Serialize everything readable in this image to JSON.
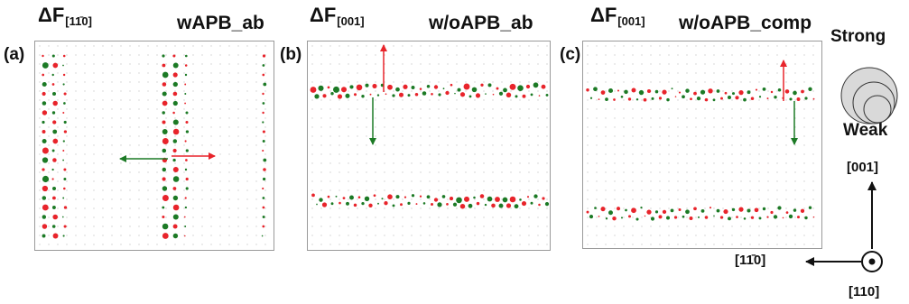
{
  "panels": [
    {
      "label": "(a)",
      "delta": "ΔF",
      "sub": "[11̄0]",
      "title": "wAPB_ab",
      "pattern": "vertical"
    },
    {
      "label": "(b)",
      "delta": "ΔF",
      "sub": "[001]",
      "title": "w/oAPB_ab",
      "pattern": "horizontal-wide"
    },
    {
      "label": "(c)",
      "delta": "ΔF",
      "sub": "[001]",
      "title": "w/oAPB_comp",
      "pattern": "horizontal-narrow"
    }
  ],
  "legend": {
    "strong": "Strong",
    "weak": "Weak"
  },
  "axes": {
    "up": "[001]",
    "left": "[11̄0]",
    "out": "[110]"
  },
  "colors": {
    "red": "#e8242b",
    "green": "#1c7a25",
    "grid": "#cfcfcf",
    "circle_fill": "#d9d9d9",
    "circle_stroke": "#333333"
  }
}
